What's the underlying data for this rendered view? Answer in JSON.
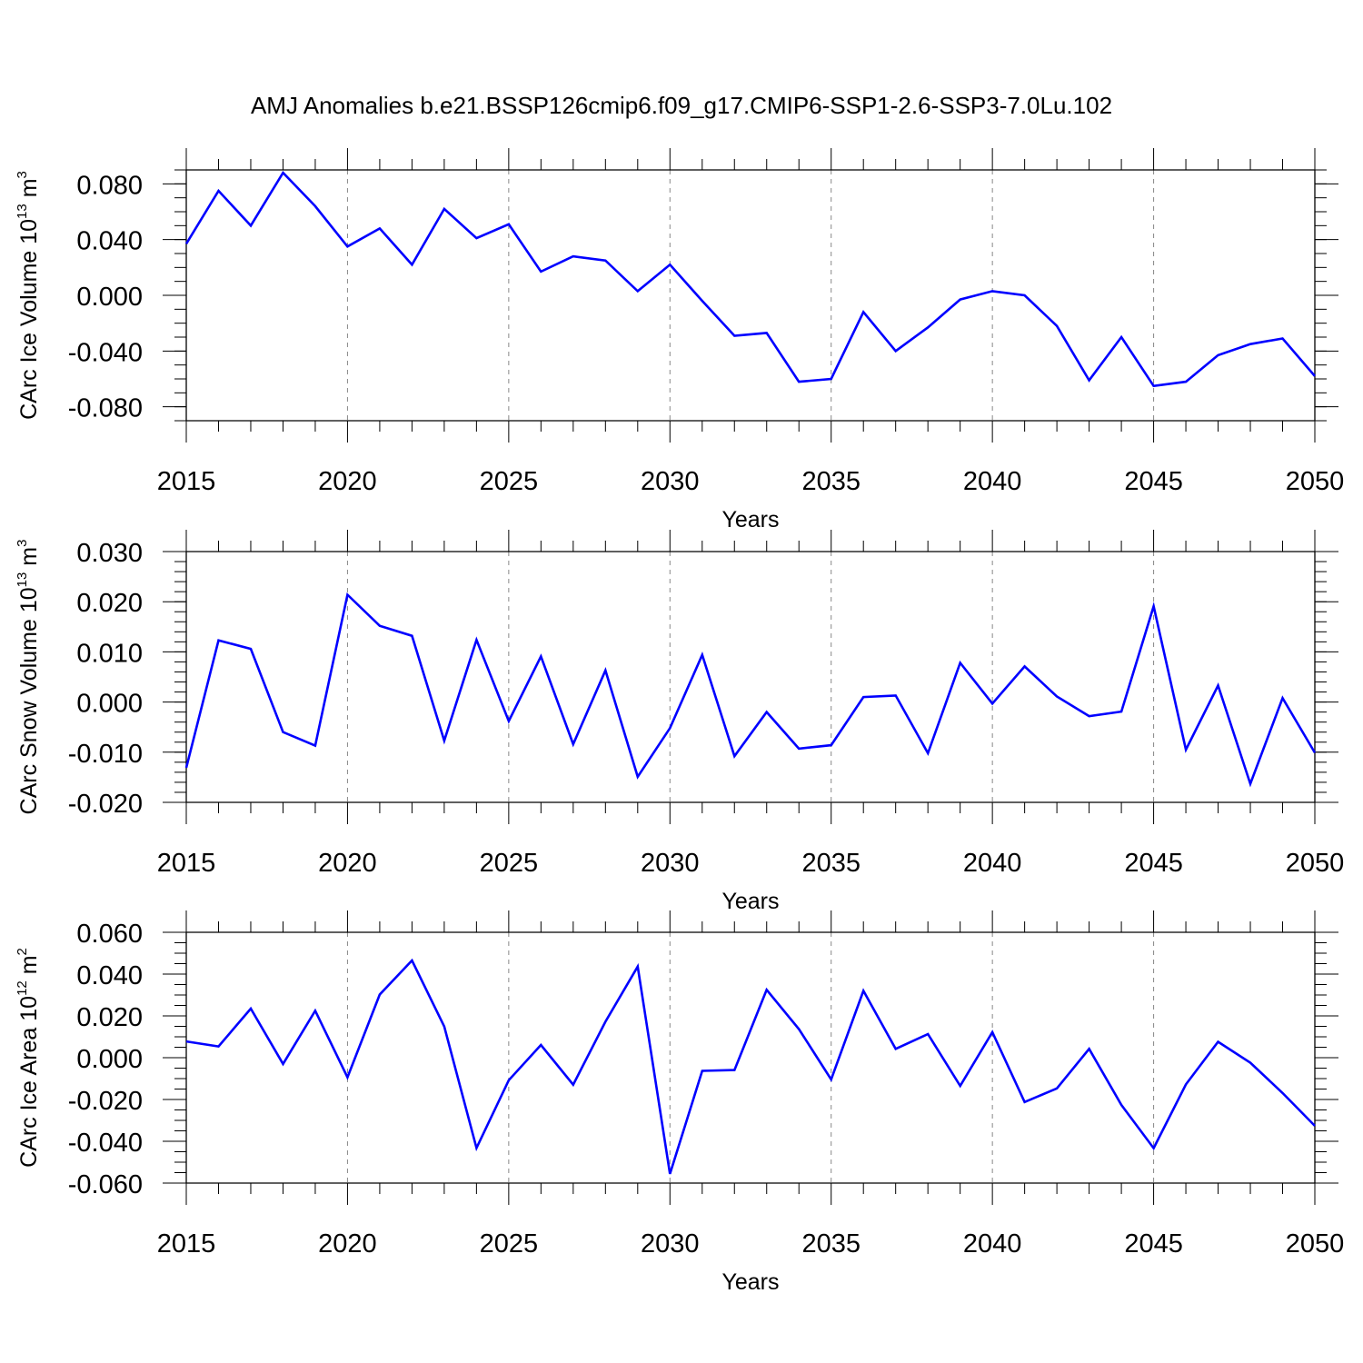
{
  "title": "AMJ Anomalies b.e21.BSSP126cmip6.f09_g17.CMIP6-SSP1-2.6-SSP3-7.0Lu.102",
  "line_color": "#0000ff",
  "chart_data": [
    {
      "type": "line",
      "ylabel": "CArc Ice Volume 10",
      "ylabel_exp": "13",
      "ylabel_unit": " m",
      "ylabel_unit_exp": "3",
      "xlabel": "Years",
      "xlim": [
        2015,
        2050
      ],
      "ylim": [
        -0.09,
        0.09
      ],
      "xticks": [
        2015,
        2020,
        2025,
        2030,
        2035,
        2040,
        2045,
        2050
      ],
      "yticks": [
        -0.08,
        -0.04,
        0.0,
        0.04,
        0.08
      ],
      "ytick_labels": [
        "-0.080",
        "-0.040",
        "0.000",
        "0.040",
        "0.080"
      ],
      "yminor": 0.01,
      "grid": "vertical dashed at major x ticks",
      "x": [
        2015,
        2016,
        2017,
        2018,
        2019,
        2020,
        2021,
        2022,
        2023,
        2024,
        2025,
        2026,
        2027,
        2028,
        2029,
        2030,
        2031,
        2032,
        2033,
        2034,
        2035,
        2036,
        2037,
        2038,
        2039,
        2040,
        2041,
        2042,
        2043,
        2044,
        2045,
        2046,
        2047,
        2048,
        2049,
        2050
      ],
      "values": [
        0.037,
        0.075,
        0.05,
        0.088,
        0.064,
        0.035,
        0.048,
        0.022,
        0.062,
        0.041,
        0.051,
        0.017,
        0.028,
        0.025,
        0.003,
        0.022,
        -0.004,
        -0.029,
        -0.027,
        -0.062,
        -0.06,
        -0.012,
        -0.04,
        -0.023,
        -0.003,
        0.003,
        0.0,
        -0.022,
        -0.061,
        -0.03,
        -0.065,
        -0.062,
        -0.043,
        -0.035,
        -0.031,
        -0.058
      ]
    },
    {
      "type": "line",
      "ylabel": "CArc Snow Volume 10",
      "ylabel_exp": "13",
      "ylabel_unit": " m",
      "ylabel_unit_exp": "3",
      "xlabel": "Years",
      "xlim": [
        2015,
        2050
      ],
      "ylim": [
        -0.02,
        0.03
      ],
      "xticks": [
        2015,
        2020,
        2025,
        2030,
        2035,
        2040,
        2045,
        2050
      ],
      "yticks": [
        -0.02,
        -0.01,
        0.0,
        0.01,
        0.02,
        0.03
      ],
      "ytick_labels": [
        "-0.020",
        "-0.010",
        "0.000",
        "0.010",
        "0.020",
        "0.030"
      ],
      "yminor": 0.002,
      "grid": "vertical dashed at major x ticks",
      "x": [
        2015,
        2016,
        2017,
        2018,
        2019,
        2020,
        2021,
        2022,
        2023,
        2024,
        2025,
        2026,
        2027,
        2028,
        2029,
        2030,
        2031,
        2032,
        2033,
        2034,
        2035,
        2036,
        2037,
        2038,
        2039,
        2040,
        2041,
        2042,
        2043,
        2044,
        2045,
        2046,
        2047,
        2048,
        2049,
        2050
      ],
      "values": [
        -0.0131,
        0.0123,
        0.0106,
        -0.006,
        -0.0087,
        0.0214,
        0.0152,
        0.0132,
        -0.0077,
        0.0124,
        -0.0038,
        0.0091,
        -0.0084,
        0.0063,
        -0.0149,
        -0.0052,
        0.0094,
        -0.0108,
        -0.002,
        -0.0093,
        -0.0086,
        0.001,
        0.0013,
        -0.0102,
        0.0078,
        -0.0003,
        0.0071,
        0.0011,
        -0.0028,
        -0.0019,
        0.0191,
        -0.0095,
        0.0033,
        -0.0163,
        0.0008,
        -0.0101
      ]
    },
    {
      "type": "line",
      "ylabel": "CArc Ice Area 10",
      "ylabel_exp": "12",
      "ylabel_unit": " m",
      "ylabel_unit_exp": "2",
      "xlabel": "Years",
      "xlim": [
        2015,
        2050
      ],
      "ylim": [
        -0.06,
        0.06
      ],
      "xticks": [
        2015,
        2020,
        2025,
        2030,
        2035,
        2040,
        2045,
        2050
      ],
      "yticks": [
        -0.06,
        -0.04,
        -0.02,
        0.0,
        0.02,
        0.04,
        0.06
      ],
      "ytick_labels": [
        "-0.060",
        "-0.040",
        "-0.020",
        "0.000",
        "0.020",
        "0.040",
        "0.060"
      ],
      "yminor": 0.005,
      "grid": "vertical dashed at major x ticks",
      "x": [
        2015,
        2016,
        2017,
        2018,
        2019,
        2020,
        2021,
        2022,
        2023,
        2024,
        2025,
        2026,
        2027,
        2028,
        2029,
        2030,
        2031,
        2032,
        2033,
        2034,
        2035,
        2036,
        2037,
        2038,
        2039,
        2040,
        2041,
        2042,
        2043,
        2044,
        2045,
        2046,
        2047,
        2048,
        2049,
        2050
      ],
      "values": [
        0.0078,
        0.0054,
        0.0235,
        -0.003,
        0.0225,
        -0.0094,
        0.0302,
        0.0465,
        0.0149,
        -0.0432,
        -0.0108,
        0.0061,
        -0.0129,
        0.0172,
        0.0436,
        -0.0556,
        -0.0063,
        -0.0059,
        0.0325,
        0.0137,
        -0.0104,
        0.032,
        0.0042,
        0.0113,
        -0.0135,
        0.0122,
        -0.0212,
        -0.0147,
        0.0042,
        -0.0226,
        -0.0433,
        -0.0128,
        0.0076,
        -0.0024,
        -0.0169,
        -0.0326
      ]
    }
  ]
}
